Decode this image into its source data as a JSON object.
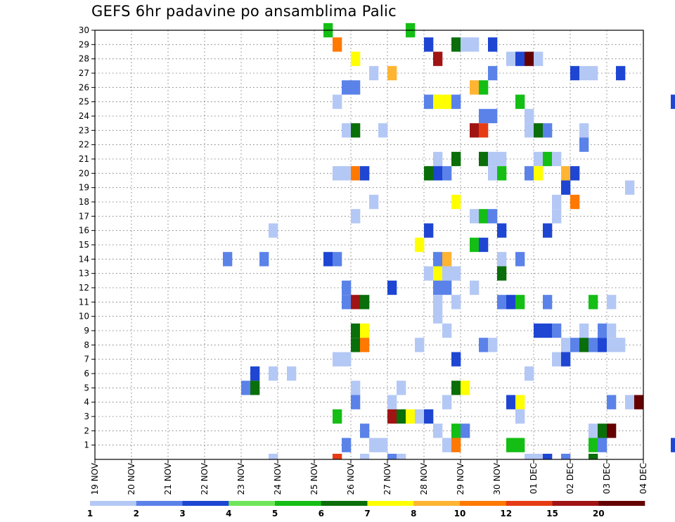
{
  "chart_data": {
    "type": "heatmap",
    "title": "GEFS 6hr padavine po ansamblima Palic",
    "xlabel": "",
    "ylabel": "",
    "y_members": [
      1,
      2,
      3,
      4,
      5,
      6,
      7,
      8,
      9,
      10,
      11,
      12,
      13,
      14,
      15,
      16,
      17,
      18,
      19,
      20,
      21,
      22,
      23,
      24,
      25,
      26,
      27,
      28,
      29,
      30
    ],
    "x_tick_labels": [
      "19 NOV",
      "20 NOV",
      "21 NOV",
      "22 NOV",
      "23 NOV",
      "24 NOV",
      "25 NOV",
      "26 NOV",
      "27 NOV",
      "28 NOV",
      "29 NOV",
      "30 NOV",
      "01 DEC",
      "02 DEC",
      "03 DEC",
      "04 DEC"
    ],
    "x_range_days": [
      0,
      15
    ],
    "y_range": [
      0,
      30
    ],
    "grid": true,
    "colorbar": {
      "levels": [
        1,
        2,
        3,
        4,
        5,
        6,
        7,
        8,
        10,
        12,
        15,
        20
      ],
      "colors": [
        "#b4c8f5",
        "#5a82e8",
        "#1e46d2",
        "#6fe65a",
        "#14be14",
        "#0a6e0a",
        "#ffff00",
        "#ffb432",
        "#ff7800",
        "#e63c14",
        "#a01414",
        "#640000"
      ]
    },
    "cells": [
      [
        25.25,
        30,
        5
      ],
      [
        27.5,
        30,
        5
      ],
      [
        25.5,
        29,
        10
      ],
      [
        28,
        29,
        3
      ],
      [
        28.75,
        29,
        6
      ],
      [
        29,
        29,
        1
      ],
      [
        29.25,
        29,
        1
      ],
      [
        29.75,
        29,
        3
      ],
      [
        26,
        28,
        7
      ],
      [
        28.25,
        28,
        15
      ],
      [
        30.25,
        28,
        1
      ],
      [
        30.5,
        28,
        3
      ],
      [
        30.75,
        28,
        20
      ],
      [
        31,
        28,
        1
      ],
      [
        26.5,
        27,
        1
      ],
      [
        27,
        27,
        8
      ],
      [
        29.75,
        27,
        2
      ],
      [
        32,
        27,
        3
      ],
      [
        32.25,
        27,
        1
      ],
      [
        32.5,
        27,
        1
      ],
      [
        33.25,
        27,
        3
      ],
      [
        25.75,
        26,
        2
      ],
      [
        26,
        26,
        2
      ],
      [
        29.25,
        26,
        8
      ],
      [
        29.5,
        26,
        5
      ],
      [
        25.5,
        25,
        1
      ],
      [
        28,
        25,
        2
      ],
      [
        28.25,
        25,
        7
      ],
      [
        28.5,
        25,
        7
      ],
      [
        28.75,
        25,
        2
      ],
      [
        30.5,
        25,
        5
      ],
      [
        34.75,
        25,
        3
      ],
      [
        29.5,
        24,
        2
      ],
      [
        29.75,
        24,
        2
      ],
      [
        30.75,
        24,
        1
      ],
      [
        25.75,
        23,
        1
      ],
      [
        26,
        23,
        6
      ],
      [
        26.75,
        23,
        1
      ],
      [
        29.25,
        23,
        15
      ],
      [
        29.5,
        23,
        12
      ],
      [
        30.75,
        23,
        1
      ],
      [
        31,
        23,
        6
      ],
      [
        31.25,
        23,
        2
      ],
      [
        32.25,
        23,
        1
      ],
      [
        32.25,
        22,
        2
      ],
      [
        28.25,
        21,
        1
      ],
      [
        28.75,
        21,
        6
      ],
      [
        29.5,
        21,
        6
      ],
      [
        29.75,
        21,
        1
      ],
      [
        30,
        21,
        1
      ],
      [
        31,
        21,
        1
      ],
      [
        31.25,
        21,
        5
      ],
      [
        31.5,
        21,
        1
      ],
      [
        25.5,
        20,
        1
      ],
      [
        25.75,
        20,
        1
      ],
      [
        26,
        20,
        10
      ],
      [
        26.25,
        20,
        3
      ],
      [
        28,
        20,
        6
      ],
      [
        28.25,
        20,
        3
      ],
      [
        28.5,
        20,
        2
      ],
      [
        29.75,
        20,
        1
      ],
      [
        30,
        20,
        5
      ],
      [
        30.75,
        20,
        2
      ],
      [
        31,
        20,
        7
      ],
      [
        31.75,
        20,
        8
      ],
      [
        32,
        20,
        3
      ],
      [
        31.75,
        19,
        3
      ],
      [
        33.5,
        19,
        1
      ],
      [
        26.5,
        18,
        1
      ],
      [
        28.75,
        18,
        7
      ],
      [
        31.5,
        18,
        1
      ],
      [
        32,
        18,
        10
      ],
      [
        26,
        17,
        1
      ],
      [
        29.25,
        17,
        1
      ],
      [
        29.5,
        17,
        5
      ],
      [
        29.75,
        17,
        2
      ],
      [
        31.5,
        17,
        1
      ],
      [
        23.75,
        16,
        1
      ],
      [
        28,
        16,
        3
      ],
      [
        30,
        16,
        3
      ],
      [
        31.25,
        16,
        3
      ],
      [
        27.75,
        15,
        7
      ],
      [
        29.25,
        15,
        5
      ],
      [
        29.5,
        15,
        3
      ],
      [
        22.5,
        14,
        2
      ],
      [
        23.5,
        14,
        2
      ],
      [
        25.25,
        14,
        3
      ],
      [
        25.5,
        14,
        2
      ],
      [
        28.25,
        14,
        2
      ],
      [
        28.5,
        14,
        8
      ],
      [
        30,
        14,
        1
      ],
      [
        30.5,
        14,
        2
      ],
      [
        28,
        13,
        1
      ],
      [
        28.25,
        13,
        7
      ],
      [
        28.5,
        13,
        1
      ],
      [
        28.75,
        13,
        1
      ],
      [
        30,
        13,
        6
      ],
      [
        25.75,
        12,
        2
      ],
      [
        27,
        12,
        3
      ],
      [
        28.25,
        12,
        2
      ],
      [
        28.5,
        12,
        2
      ],
      [
        29.25,
        12,
        1
      ],
      [
        25.75,
        11,
        2
      ],
      [
        26,
        11,
        15
      ],
      [
        26.25,
        11,
        6
      ],
      [
        28.25,
        11,
        1
      ],
      [
        28.75,
        11,
        1
      ],
      [
        30,
        11,
        2
      ],
      [
        30.25,
        11,
        3
      ],
      [
        30.5,
        11,
        5
      ],
      [
        31.25,
        11,
        2
      ],
      [
        32.5,
        11,
        5
      ],
      [
        33,
        11,
        1
      ],
      [
        28.25,
        10,
        1
      ],
      [
        26,
        9,
        6
      ],
      [
        26.25,
        9,
        7
      ],
      [
        28.5,
        9,
        1
      ],
      [
        31,
        9,
        3
      ],
      [
        31.25,
        9,
        3
      ],
      [
        31.5,
        9,
        2
      ],
      [
        32.25,
        9,
        1
      ],
      [
        32.75,
        9,
        2
      ],
      [
        33,
        9,
        1
      ],
      [
        26,
        8,
        6
      ],
      [
        26.25,
        8,
        10
      ],
      [
        27.75,
        8,
        1
      ],
      [
        29.5,
        8,
        2
      ],
      [
        29.75,
        8,
        1
      ],
      [
        31.75,
        8,
        1
      ],
      [
        32,
        8,
        2
      ],
      [
        32.25,
        8,
        6
      ],
      [
        32.5,
        8,
        2
      ],
      [
        32.75,
        8,
        3
      ],
      [
        33,
        8,
        1
      ],
      [
        33.25,
        8,
        1
      ],
      [
        25.5,
        7,
        1
      ],
      [
        25.75,
        7,
        1
      ],
      [
        28.75,
        7,
        3
      ],
      [
        31.5,
        7,
        1
      ],
      [
        31.75,
        7,
        3
      ],
      [
        23.25,
        6,
        3
      ],
      [
        23.75,
        6,
        1
      ],
      [
        24.25,
        6,
        1
      ],
      [
        30.75,
        6,
        1
      ],
      [
        23,
        5,
        2
      ],
      [
        23.25,
        5,
        6
      ],
      [
        26,
        5,
        1
      ],
      [
        27.25,
        5,
        1
      ],
      [
        28.75,
        5,
        6
      ],
      [
        29,
        5,
        7
      ],
      [
        26,
        4,
        2
      ],
      [
        27,
        4,
        1
      ],
      [
        28.5,
        4,
        1
      ],
      [
        30.25,
        4,
        3
      ],
      [
        30.5,
        4,
        7
      ],
      [
        33,
        4,
        2
      ],
      [
        33.5,
        4,
        1
      ],
      [
        33.75,
        4,
        20
      ],
      [
        25.5,
        3,
        5
      ],
      [
        27,
        3,
        15
      ],
      [
        27.25,
        3,
        6
      ],
      [
        27.5,
        3,
        7
      ],
      [
        27.75,
        3,
        1
      ],
      [
        28,
        3,
        3
      ],
      [
        30.5,
        3,
        1
      ],
      [
        26.25,
        2,
        2
      ],
      [
        28.25,
        2,
        1
      ],
      [
        28.75,
        2,
        5
      ],
      [
        29,
        2,
        2
      ],
      [
        32.5,
        2,
        1
      ],
      [
        32.75,
        2,
        6
      ],
      [
        33,
        2,
        20
      ],
      [
        25.75,
        1,
        2
      ],
      [
        26.5,
        1,
        1
      ],
      [
        26.75,
        1,
        1
      ],
      [
        28.5,
        1,
        1
      ],
      [
        28.75,
        1,
        10
      ],
      [
        30.25,
        1,
        5
      ],
      [
        30.5,
        1,
        5
      ],
      [
        32.5,
        1,
        5
      ],
      [
        32.75,
        1,
        2
      ],
      [
        34.75,
        1,
        3
      ],
      [
        23.75,
        0,
        1
      ],
      [
        25.5,
        0,
        12
      ],
      [
        26.25,
        0,
        1
      ],
      [
        27,
        0,
        2
      ],
      [
        27.25,
        0,
        1
      ],
      [
        30.75,
        0,
        1
      ],
      [
        31,
        0,
        1
      ],
      [
        31.25,
        0,
        3
      ],
      [
        31.75,
        0,
        2
      ],
      [
        32.5,
        0,
        6
      ]
    ]
  }
}
